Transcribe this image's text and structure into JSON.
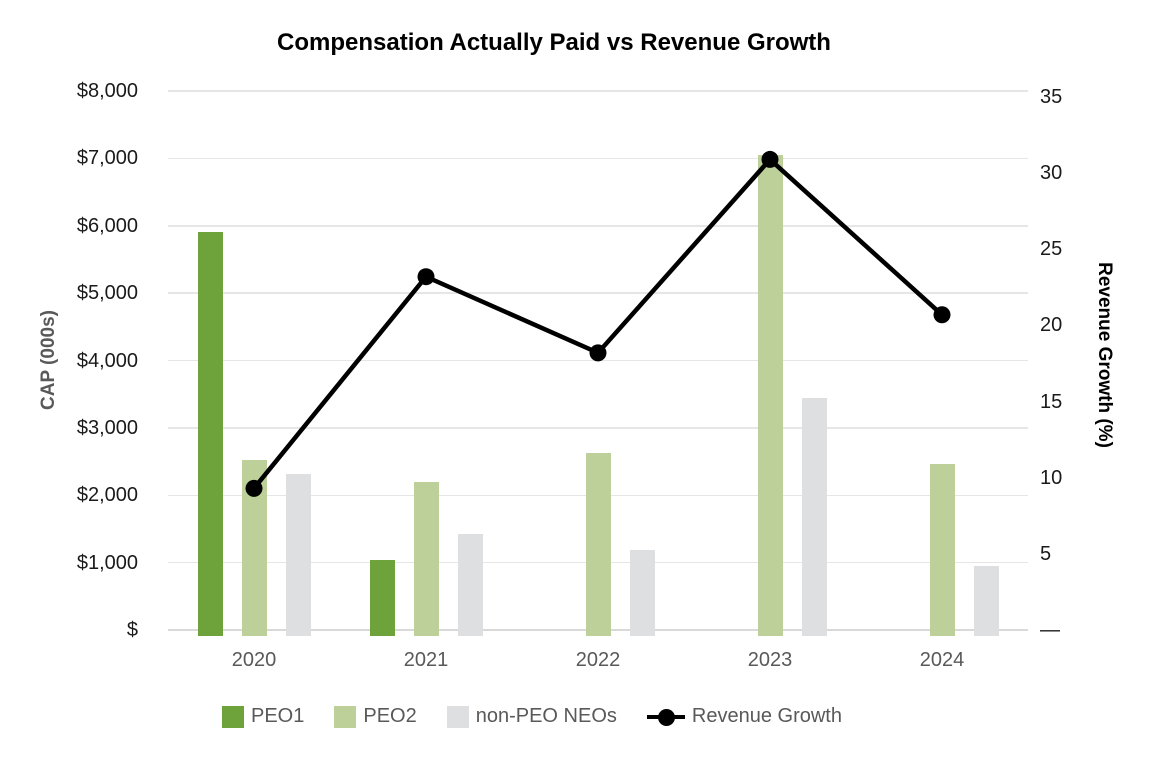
{
  "chart_data": {
    "type": "combo-bar-line",
    "title": "Compensation Actually Paid vs Revenue Growth",
    "categories": [
      "2020",
      "2021",
      "2022",
      "2023",
      "2024"
    ],
    "series": [
      {
        "name": "PEO1",
        "type": "bar",
        "axis": "left",
        "color": "#6ea33c",
        "values": [
          5900,
          1040,
          0,
          0,
          0
        ]
      },
      {
        "name": "PEO2",
        "type": "bar",
        "axis": "left",
        "color": "#bdd09a",
        "values": [
          2520,
          2200,
          2630,
          7050,
          2460
        ]
      },
      {
        "name": "non-PEO NEOs",
        "type": "bar",
        "axis": "left",
        "color": "#dedfe0",
        "values": [
          2320,
          1430,
          1190,
          3440,
          950
        ]
      },
      {
        "name": "Revenue Growth",
        "type": "line",
        "axis": "right",
        "color": "#000000",
        "values": [
          9.3,
          23.2,
          18.2,
          30.9,
          20.7
        ]
      }
    ],
    "left_axis": {
      "label": "CAP (000s)",
      "min": 0,
      "max": 8000,
      "tick_labels": [
        "$8,000",
        "$7,000",
        "$6,000",
        "$5,000",
        "$4,000",
        "$3,000",
        "$2,000",
        "$1,000",
        "$"
      ]
    },
    "right_axis": {
      "label": "Revenue Growth (%)",
      "min": 0,
      "max": 35,
      "tick_labels": [
        "35",
        "30",
        "25",
        "20",
        "15",
        "10",
        "5",
        "—"
      ]
    },
    "grid": true,
    "legend_position": "bottom",
    "colors": {
      "gridline": "#e6e6e6",
      "axis_tick_text": "#1a1a1a",
      "category_text": "#595959",
      "legend_text": "#595959"
    }
  }
}
